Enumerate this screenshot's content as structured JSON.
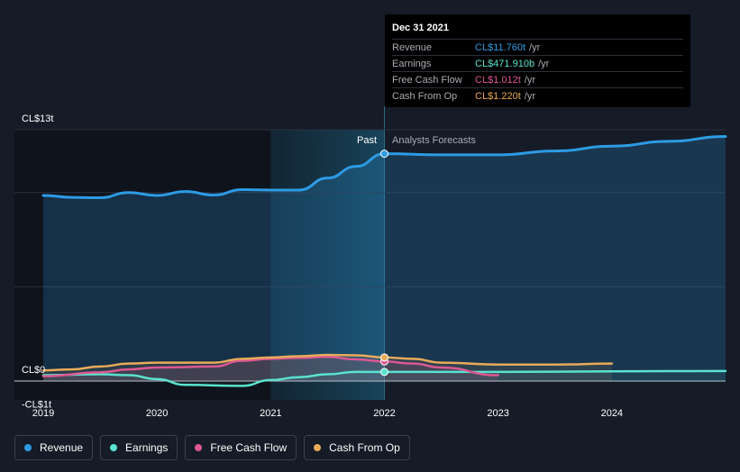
{
  "tooltip": {
    "date": "Dec 31 2021",
    "rows": [
      {
        "name": "Revenue",
        "value": "CL$11.760t",
        "unit": "/yr",
        "color": "#2d9be4"
      },
      {
        "name": "Earnings",
        "value": "CL$471.910b",
        "unit": "/yr",
        "color": "#5ae3cf"
      },
      {
        "name": "Free Cash Flow",
        "value": "CL$1.012t",
        "unit": "/yr",
        "color": "#dd5893"
      },
      {
        "name": "Cash From Op",
        "value": "CL$1.220t",
        "unit": "/yr",
        "color": "#e9ab5a"
      }
    ]
  },
  "regions": {
    "past": "Past",
    "forecast": "Analysts Forecasts"
  },
  "legend": [
    {
      "name": "Revenue",
      "color": "#2d9be4"
    },
    {
      "name": "Earnings",
      "color": "#5ae3cf"
    },
    {
      "name": "Free Cash Flow",
      "color": "#dd5893"
    },
    {
      "name": "Cash From Op",
      "color": "#e9ab5a"
    }
  ],
  "chart_data": {
    "type": "line",
    "y_tick_labels": [
      "CL$13t",
      "CL$0",
      "-CL$1t"
    ],
    "x_tick_labels": [
      "2019",
      "2020",
      "2021",
      "2022",
      "2023",
      "2024"
    ],
    "ylim": [
      -1,
      13
    ],
    "xlim": [
      2019,
      2025
    ],
    "past_until": 2022,
    "grid": true,
    "legend_position": "bottom",
    "series": [
      {
        "name": "Revenue",
        "color": "#2d9be4",
        "points": [
          [
            2019.0,
            9.6
          ],
          [
            2019.25,
            9.5
          ],
          [
            2019.5,
            9.48
          ],
          [
            2019.75,
            9.75
          ],
          [
            2020.0,
            9.6
          ],
          [
            2020.25,
            9.8
          ],
          [
            2020.5,
            9.62
          ],
          [
            2020.75,
            9.9
          ],
          [
            2021.0,
            9.88
          ],
          [
            2021.25,
            9.88
          ],
          [
            2021.5,
            10.5
          ],
          [
            2021.75,
            11.1
          ],
          [
            2022.0,
            11.76
          ],
          [
            2022.5,
            11.7
          ],
          [
            2023.0,
            11.7
          ],
          [
            2023.5,
            11.9
          ],
          [
            2024.0,
            12.15
          ],
          [
            2024.5,
            12.4
          ],
          [
            2025.0,
            12.65
          ]
        ]
      },
      {
        "name": "Earnings",
        "color": "#5ae3cf",
        "points": [
          [
            2019.0,
            0.3
          ],
          [
            2019.5,
            0.35
          ],
          [
            2019.75,
            0.3
          ],
          [
            2020.0,
            0.1
          ],
          [
            2020.25,
            -0.2
          ],
          [
            2020.75,
            -0.25
          ],
          [
            2021.0,
            0.05
          ],
          [
            2021.25,
            0.2
          ],
          [
            2021.5,
            0.35
          ],
          [
            2021.75,
            0.47
          ],
          [
            2022.0,
            0.472
          ],
          [
            2022.5,
            0.47
          ],
          [
            2023.0,
            0.47
          ],
          [
            2024.0,
            0.5
          ],
          [
            2025.0,
            0.52
          ]
        ]
      },
      {
        "name": "Free Cash Flow",
        "color": "#dd5893",
        "points": [
          [
            2019.0,
            0.25
          ],
          [
            2019.5,
            0.45
          ],
          [
            2019.75,
            0.6
          ],
          [
            2020.0,
            0.7
          ],
          [
            2020.5,
            0.75
          ],
          [
            2020.75,
            1.05
          ],
          [
            2021.0,
            1.15
          ],
          [
            2021.25,
            1.2
          ],
          [
            2021.5,
            1.25
          ],
          [
            2021.75,
            1.12
          ],
          [
            2022.0,
            1.012
          ],
          [
            2022.25,
            0.9
          ],
          [
            2022.5,
            0.7
          ],
          [
            2023.0,
            0.3
          ]
        ]
      },
      {
        "name": "Cash From Op",
        "color": "#e9ab5a",
        "points": [
          [
            2019.0,
            0.55
          ],
          [
            2019.25,
            0.6
          ],
          [
            2019.5,
            0.75
          ],
          [
            2019.75,
            0.9
          ],
          [
            2020.0,
            0.95
          ],
          [
            2020.5,
            0.95
          ],
          [
            2020.75,
            1.15
          ],
          [
            2021.0,
            1.22
          ],
          [
            2021.25,
            1.28
          ],
          [
            2021.5,
            1.35
          ],
          [
            2021.75,
            1.33
          ],
          [
            2022.0,
            1.22
          ],
          [
            2022.25,
            1.15
          ],
          [
            2022.5,
            0.95
          ],
          [
            2023.0,
            0.85
          ],
          [
            2023.5,
            0.85
          ],
          [
            2024.0,
            0.9
          ]
        ]
      }
    ]
  }
}
